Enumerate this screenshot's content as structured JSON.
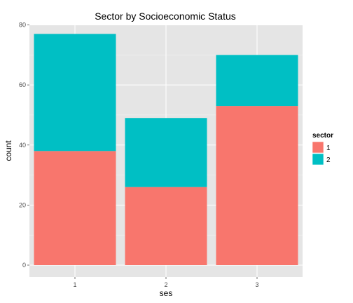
{
  "chart_data": {
    "type": "bar",
    "stacked": true,
    "title": "Sector by Socioeconomic Status",
    "xlabel": "ses",
    "ylabel": "count",
    "categories": [
      "1",
      "2",
      "3"
    ],
    "ylim": [
      0,
      80
    ],
    "yticks": [
      "0",
      "20",
      "40",
      "60",
      "80"
    ],
    "grid": true,
    "legend_title": "sector",
    "legend_position": "right",
    "series": [
      {
        "name": "1",
        "color": "#F8766D",
        "values": [
          38,
          26,
          53
        ]
      },
      {
        "name": "2",
        "color": "#00BFC4",
        "values": [
          39,
          23,
          17
        ]
      }
    ]
  }
}
